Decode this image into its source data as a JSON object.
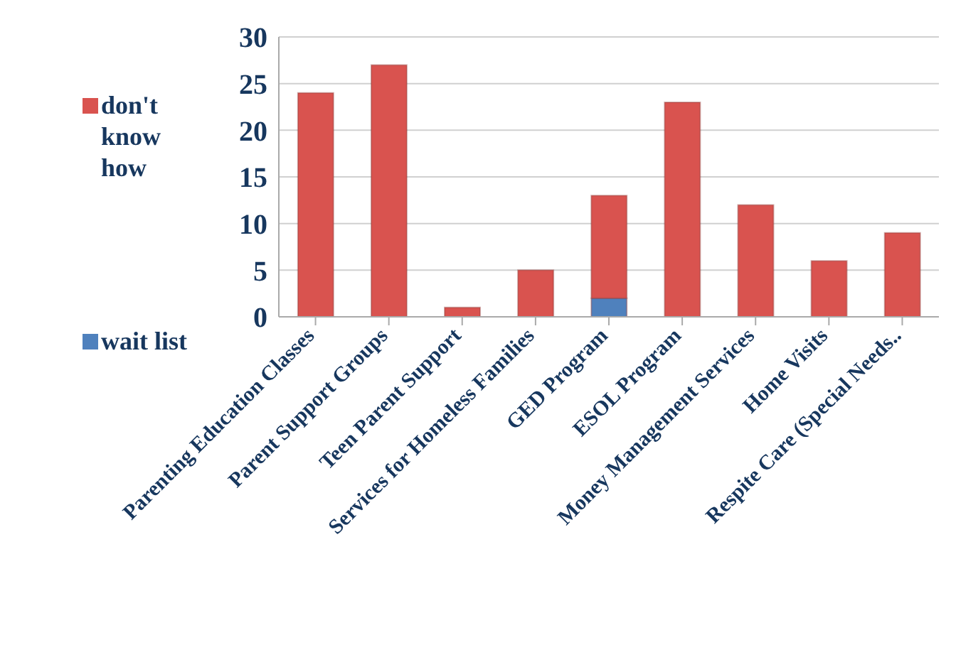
{
  "chart_data": {
    "type": "bar",
    "stacked": true,
    "categories": [
      "Parenting Education Classes",
      "Parent Support Groups",
      "Teen Parent Support",
      "Services for Homeless Families",
      "GED Program",
      "ESOL Program",
      "Money Management Services",
      "Home Visits",
      "Respite Care (Special Needs.."
    ],
    "series": [
      {
        "name": "wait list",
        "color": "#4f81bd",
        "values": [
          0,
          0,
          0,
          0,
          2,
          0,
          0,
          0,
          0
        ]
      },
      {
        "name": "don't know how",
        "color": "#d9534f",
        "values": [
          24,
          27,
          1,
          5,
          11,
          23,
          12,
          6,
          9
        ]
      }
    ],
    "ylim": [
      0,
      30
    ],
    "yticks": [
      0,
      5,
      10,
      15,
      20,
      25,
      30
    ],
    "grid": "y",
    "legend": "left"
  }
}
